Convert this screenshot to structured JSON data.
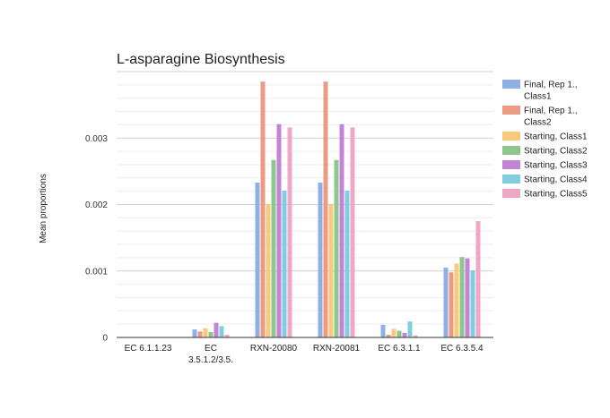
{
  "chart_data": {
    "type": "bar",
    "title": "L-asparagine Biosynthesis",
    "xlabel": "",
    "ylabel": "Mean proportions",
    "ylim": [
      0,
      0.004
    ],
    "y_ticks": [
      0,
      0.001,
      0.002,
      0.003
    ],
    "y_tick_labels": [
      "0",
      "0.001",
      "0.002",
      "0.003"
    ],
    "grid": true,
    "legend_position": "right",
    "categories": [
      [
        "EC 6.1.1.23"
      ],
      [
        "EC",
        "3.5.1.2/3.5."
      ],
      [
        "RXN-20080"
      ],
      [
        "RXN-20081"
      ],
      [
        "EC 6.3.1.1"
      ],
      [
        "EC 6.3.5.4"
      ]
    ],
    "series": [
      {
        "name": [
          "Final, Rep 1.,",
          "Class1"
        ],
        "color": "#8fb0e3",
        "values": [
          0,
          0.00012,
          0.00233,
          0.00233,
          0.00019,
          0.00105
        ]
      },
      {
        "name": [
          "Final, Rep 1.,",
          "Class2"
        ],
        "color": "#ec9a84",
        "values": [
          0,
          9e-05,
          0.00385,
          0.00385,
          4e-05,
          0.00098
        ]
      },
      {
        "name": [
          "Starting, Class1"
        ],
        "color": "#f9c97c",
        "values": [
          0,
          0.00014,
          0.00201,
          0.00201,
          0.00013,
          0.00111
        ]
      },
      {
        "name": [
          "Starting, Class2"
        ],
        "color": "#8dc78e",
        "values": [
          0,
          8e-05,
          0.00267,
          0.00267,
          0.0001,
          0.00121
        ]
      },
      {
        "name": [
          "Starting, Class3"
        ],
        "color": "#c384d3",
        "values": [
          0,
          0.00022,
          0.00321,
          0.00321,
          7e-05,
          0.00119
        ]
      },
      {
        "name": [
          "Starting, Class4"
        ],
        "color": "#80cde0",
        "values": [
          0,
          0.00017,
          0.00221,
          0.00221,
          0.00024,
          0.00101
        ]
      },
      {
        "name": [
          "Starting, Class5"
        ],
        "color": "#efa8c4",
        "values": [
          0,
          4e-05,
          0.00316,
          0.00316,
          3e-05,
          0.00175
        ]
      }
    ]
  }
}
